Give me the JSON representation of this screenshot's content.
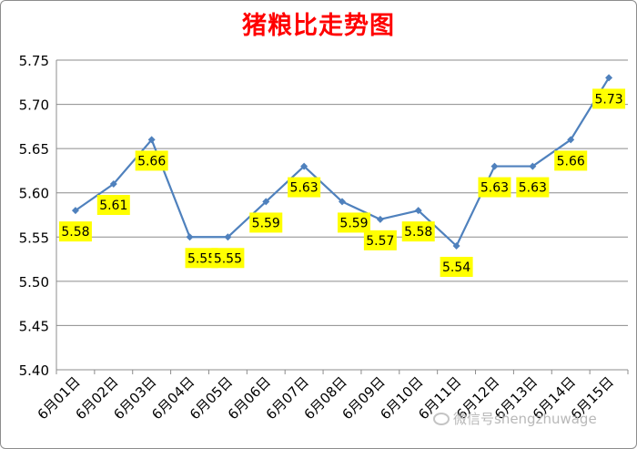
{
  "chart_data": {
    "type": "line",
    "title": "猪粮比走势图",
    "categories": [
      "6月01日",
      "6月02日",
      "6月03日",
      "6月04日",
      "6月05日",
      "6月06日",
      "6月07日",
      "6月08日",
      "6月09日",
      "6月10日",
      "6月11日",
      "6月12日",
      "6月13日",
      "6月14日",
      "6月15日"
    ],
    "series": [
      {
        "values": [
          5.58,
          5.61,
          5.66,
          5.55,
          5.55,
          5.59,
          5.63,
          5.59,
          5.57,
          5.58,
          5.54,
          5.63,
          5.63,
          5.66,
          5.73
        ]
      }
    ],
    "data_labels": [
      "5.58",
      "5.61",
      "5.66",
      "5.55",
      "5.55",
      "5.59",
      "5.63",
      "5.59",
      "5.57",
      "5.58",
      "5.54",
      "5.63",
      "5.63",
      "5.66",
      "5.73"
    ],
    "yticks": [
      "5.40",
      "5.45",
      "5.50",
      "5.55",
      "5.60",
      "5.65",
      "5.70",
      "5.75"
    ],
    "ylim": [
      5.4,
      5.75
    ],
    "xlabel": "",
    "ylabel": "",
    "grid": true,
    "legend": "none",
    "colors": {
      "line": "#4f81bd",
      "grid": "#8c8c8c",
      "label_bg": "#ffff00",
      "title": "#ff0000"
    }
  },
  "watermark": {
    "text": "微信号shengzhuwage",
    "icon": "wechat-icon"
  }
}
